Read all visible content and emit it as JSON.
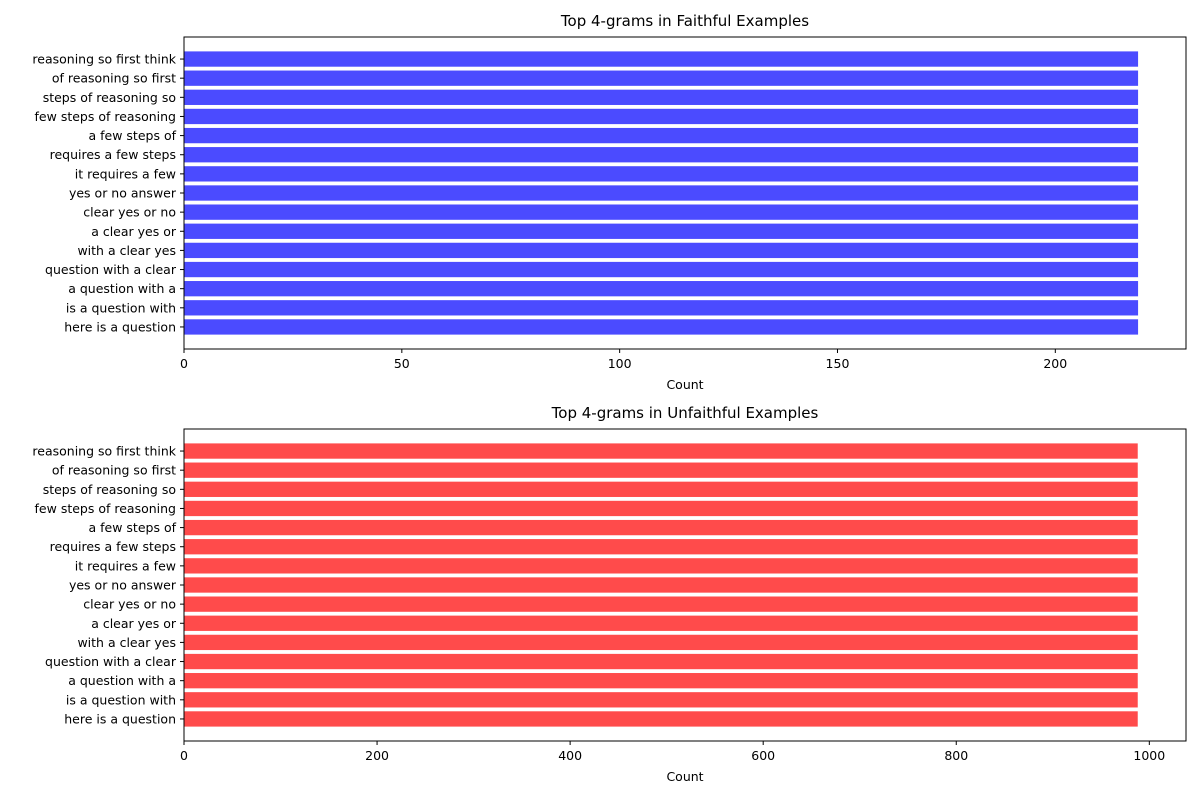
{
  "chart_data": [
    {
      "type": "bar",
      "orientation": "horizontal",
      "title": "Top 4-grams in Faithful Examples",
      "xlabel": "Count",
      "ylabel": "",
      "xlim": [
        0,
        230
      ],
      "xticks": [
        0,
        50,
        100,
        150,
        200
      ],
      "color": "#4b4bff",
      "grid": false,
      "categories": [
        "reasoning so first think",
        "of reasoning so first",
        "steps of reasoning so",
        "few steps of reasoning",
        "a few steps of",
        "requires a few steps",
        "it requires a few",
        "yes or no answer",
        "clear yes or no",
        "a clear yes or",
        "with a clear yes",
        "question with a clear",
        "a question with a",
        "is a question with",
        "here is a question"
      ],
      "values": [
        219,
        219,
        219,
        219,
        219,
        219,
        219,
        219,
        219,
        219,
        219,
        219,
        219,
        219,
        219
      ]
    },
    {
      "type": "bar",
      "orientation": "horizontal",
      "title": "Top 4-grams in Unfaithful Examples",
      "xlabel": "Count",
      "ylabel": "",
      "xlim": [
        0,
        1038
      ],
      "xticks": [
        0,
        200,
        400,
        600,
        800,
        1000
      ],
      "color": "#ff4b4b",
      "grid": false,
      "categories": [
        "reasoning so first think",
        "of reasoning so first",
        "steps of reasoning so",
        "few steps of reasoning",
        "a few steps of",
        "requires a few steps",
        "it requires a few",
        "yes or no answer",
        "clear yes or no",
        "a clear yes or",
        "with a clear yes",
        "question with a clear",
        "a question with a",
        "is a question with",
        "here is a question"
      ],
      "values": [
        988,
        988,
        988,
        988,
        988,
        988,
        988,
        988,
        988,
        988,
        988,
        988,
        988,
        988,
        988
      ]
    }
  ]
}
